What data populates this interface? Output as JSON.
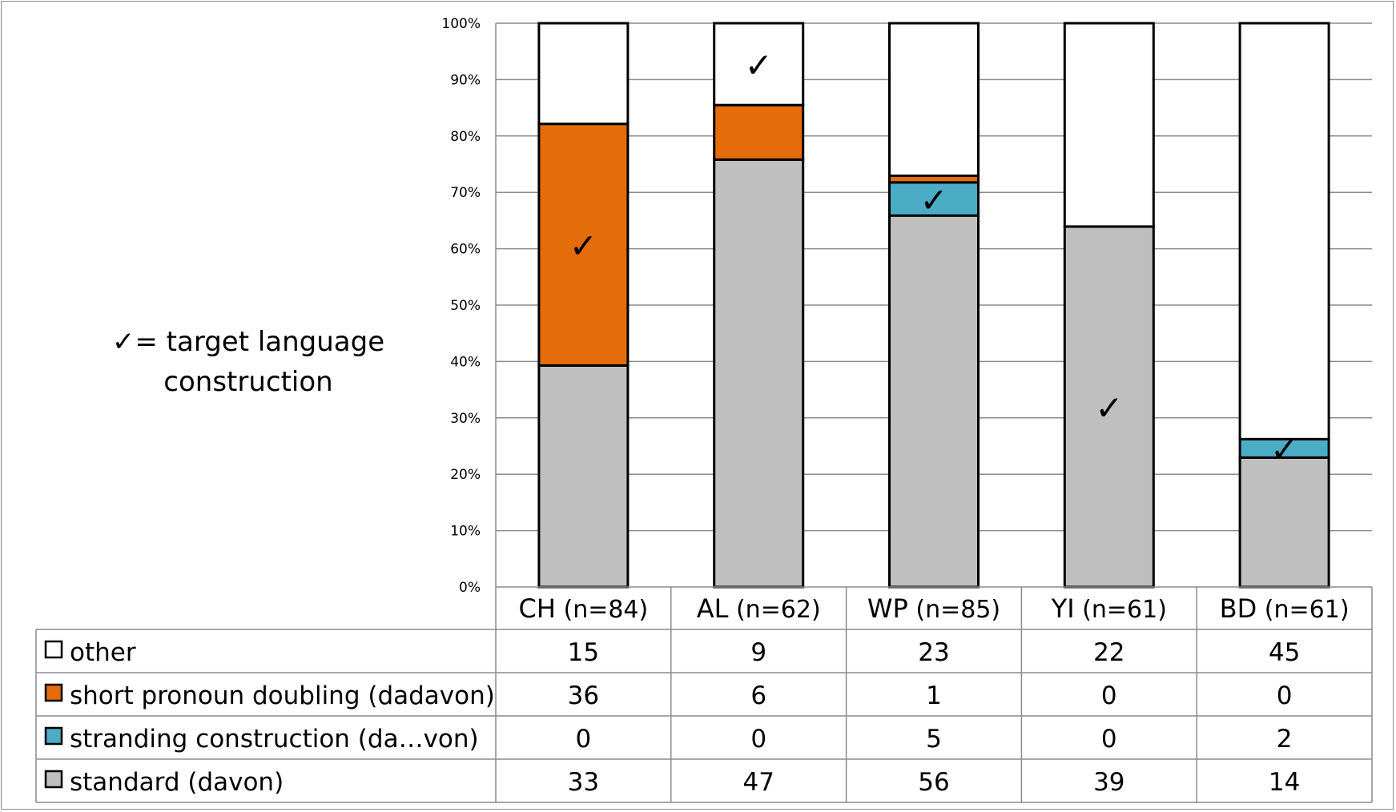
{
  "chart_data": {
    "type": "bar",
    "stacked": true,
    "percent_stacked": true,
    "categories": [
      "CH",
      "AL",
      "WP",
      "YI",
      "BD"
    ],
    "category_counts": [
      "(n=84)",
      "(n=62)",
      "(n=85)",
      "(n=61)",
      "(n=61)"
    ],
    "ylim": [
      0,
      100
    ],
    "yticks": [
      "0%",
      "10%",
      "20%",
      "30%",
      "40%",
      "50%",
      "60%",
      "70%",
      "80%",
      "90%",
      "100%"
    ],
    "grid": true,
    "legend_placement": "table-below",
    "series": [
      {
        "name": "standard (davon)",
        "color": "#bfbfbf",
        "values": [
          33,
          47,
          56,
          39,
          14
        ]
      },
      {
        "name": "stranding construction (da…von)",
        "color": "#4bacc6",
        "values": [
          0,
          0,
          5,
          0,
          2
        ]
      },
      {
        "name": "short pronoun doubling (dadavon)",
        "color": "#e46c0a",
        "values": [
          36,
          6,
          1,
          0,
          0
        ]
      },
      {
        "name": "other",
        "color": "#ffffff",
        "values": [
          15,
          9,
          23,
          22,
          45
        ]
      }
    ],
    "table_row_order": [
      "other",
      "short pronoun doubling (dadavon)",
      "stranding construction (da…von)",
      "standard (davon)"
    ],
    "target_marks": [
      {
        "category": "CH",
        "series": "short pronoun doubling (dadavon)"
      },
      {
        "category": "AL",
        "series": "other"
      },
      {
        "category": "WP",
        "series": "stranding construction (da…von)"
      },
      {
        "category": "YI",
        "series": "standard (davon)"
      },
      {
        "category": "BD",
        "series": "stranding construction (da…von)"
      }
    ],
    "check_symbol": "✓"
  },
  "note": {
    "symbol": "✓",
    "line1": "= target language",
    "line2": "construction"
  }
}
